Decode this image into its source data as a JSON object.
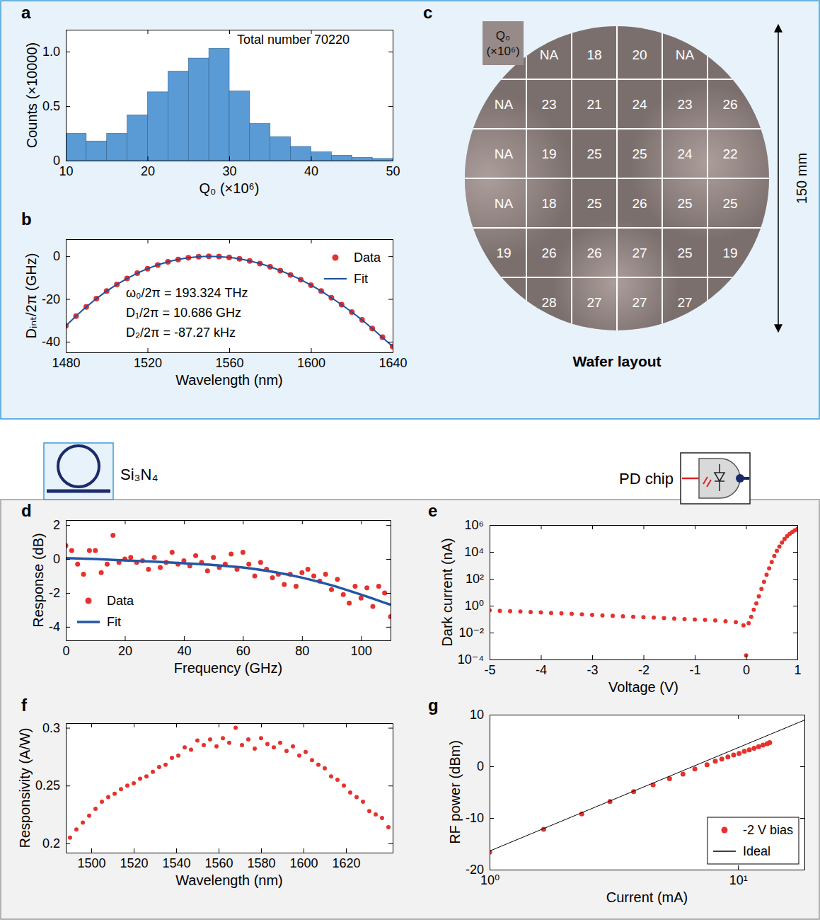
{
  "chart_data": [
    {
      "panel": "a",
      "type": "histogram",
      "x_label": "Q₀ (×10⁶)",
      "y_label": "Counts (×10000)",
      "annotations": [
        "Total number 70220"
      ],
      "bins": [
        10,
        12.5,
        15,
        17.5,
        20,
        22.5,
        25,
        27.5,
        30,
        32.5,
        35,
        37.5,
        40,
        42.5,
        45,
        47.5,
        50
      ],
      "values": [
        0.25,
        0.18,
        0.25,
        0.42,
        0.63,
        0.82,
        0.94,
        1.03,
        0.64,
        0.34,
        0.22,
        0.13,
        0.08,
        0.05,
        0.03,
        0.02
      ],
      "color": "#5b9bd5",
      "xlim": [
        10,
        50
      ],
      "ylim": [
        0,
        1.2
      ],
      "xticks": [
        10,
        20,
        30,
        40,
        50
      ],
      "yticks": [
        0,
        0.5,
        {
          "value": 1,
          "label": "1.0"
        }
      ]
    },
    {
      "panel": "b",
      "type": "line",
      "x_label": "Wavelength (nm)",
      "y_label": "Dᵢₙₜ/2π (GHz)",
      "annotations": [
        "ω₀/2π = 193.324 THz",
        "D₁/2π = 10.686 GHz",
        "D₂/2π = -87.27 kHz"
      ],
      "xlim": [
        1480,
        1640
      ],
      "ylim": [
        -45,
        8
      ],
      "xticks": [
        1480,
        1520,
        1560,
        1600,
        1640
      ],
      "yticks": [
        -40,
        -20,
        0
      ],
      "legend": "upper right",
      "series": [
        {
          "name": "Data",
          "type": "scatter",
          "marker": "circle",
          "color": "#e5322d",
          "x": [
            1480,
            1485,
            1490,
            1495,
            1500,
            1505,
            1510,
            1515,
            1520,
            1525,
            1530,
            1535,
            1540,
            1545,
            1550,
            1555,
            1560,
            1565,
            1570,
            1575,
            1580,
            1585,
            1590,
            1595,
            1600,
            1605,
            1610,
            1615,
            1620,
            1625,
            1630,
            1635,
            1640
          ],
          "values": [
            -32.6,
            -28.0,
            -23.7,
            -19.8,
            -16.3,
            -13.2,
            -10.4,
            -7.9,
            -5.8,
            -4.1,
            -2.6,
            -1.5,
            -0.7,
            -0.2,
            0,
            -0.1,
            -0.5,
            -1.2,
            -2.2,
            -3.4,
            -4.9,
            -6.7,
            -8.7,
            -11.0,
            -13.5,
            -16.3,
            -19.4,
            -22.6,
            -26.1,
            -29.8,
            -33.8,
            -37.9,
            -42.3
          ]
        },
        {
          "name": "Fit",
          "type": "line",
          "line_style": "solid",
          "color": "#1f4e9c",
          "x": [
            1480,
            1490,
            1500,
            1510,
            1520,
            1530,
            1540,
            1550,
            1560,
            1570,
            1580,
            1590,
            1600,
            1610,
            1620,
            1630,
            1640
          ],
          "values": [
            -32.6,
            -23.7,
            -16.3,
            -10.4,
            -5.8,
            -2.6,
            -0.7,
            0,
            -0.5,
            -2.2,
            -4.9,
            -8.7,
            -13.5,
            -19.4,
            -26.1,
            -33.8,
            -42.3
          ]
        }
      ]
    },
    {
      "panel": "c",
      "type": "wafer_map",
      "title": "Wafer layout",
      "colorbar_label": "Q₀ (×10⁶)",
      "dimension_label": "150 mm",
      "cells": [
        [
          null,
          "NA",
          18,
          20,
          "NA",
          null
        ],
        [
          "NA",
          23,
          21,
          24,
          23,
          26
        ],
        [
          "NA",
          19,
          25,
          25,
          24,
          22
        ],
        [
          "NA",
          18,
          25,
          26,
          25,
          25
        ],
        [
          19,
          26,
          26,
          27,
          25,
          19
        ],
        [
          null,
          28,
          27,
          27,
          27,
          null
        ]
      ]
    },
    {
      "panel": "d",
      "type": "line",
      "x_label": "Frequency (GHz)",
      "y_label": "Response (dB)",
      "xlim": [
        0,
        110
      ],
      "ylim": [
        -4.8,
        2.3
      ],
      "xticks": [
        0,
        20,
        40,
        60,
        80,
        100
      ],
      "yticks": [
        -4,
        -2,
        0,
        2
      ],
      "legend": "lower left",
      "series": [
        {
          "name": "Data",
          "type": "scatter",
          "marker": "circle",
          "color": "#e5322d",
          "x": [
            0,
            2,
            4,
            6,
            8,
            10,
            12,
            14,
            16,
            18,
            20,
            22,
            24,
            26,
            28,
            30,
            32,
            34,
            36,
            38,
            40,
            42,
            44,
            46,
            48,
            50,
            52,
            54,
            56,
            58,
            60,
            62,
            64,
            66,
            68,
            70,
            72,
            74,
            76,
            78,
            80,
            82,
            84,
            86,
            88,
            90,
            92,
            94,
            96,
            98,
            100,
            102,
            104,
            106,
            108,
            110
          ],
          "values": [
            0.8,
            0.5,
            -0.3,
            -0.9,
            0.5,
            0.5,
            -0.8,
            -0.3,
            1.4,
            -0.2,
            0,
            0.1,
            -0.2,
            -0.1,
            -0.6,
            0.1,
            -0.5,
            -0.2,
            0.4,
            -0.3,
            -0.1,
            -0.4,
            0.2,
            -0.2,
            -0.7,
            0.1,
            -0.5,
            -0.3,
            0.3,
            -0.6,
            0.4,
            -0.3,
            -1,
            -0.2,
            -0.6,
            -1.1,
            -0.9,
            -1.5,
            -0.9,
            -1.6,
            -0.8,
            -0.6,
            -1,
            -1.3,
            -0.9,
            -1.8,
            -1.2,
            -2.1,
            -2.6,
            -1.6,
            -2.3,
            -1.7,
            -2.8,
            -1.6,
            -2,
            -3.4
          ]
        },
        {
          "name": "Fit",
          "type": "line",
          "line_style": "solid",
          "color": "#2456a4",
          "x": [
            0,
            10,
            20,
            30,
            40,
            50,
            60,
            70,
            80,
            90,
            100,
            110
          ],
          "values": [
            0.05,
            0,
            -0.08,
            -0.15,
            -0.25,
            -0.35,
            -0.5,
            -0.75,
            -1.1,
            -1.55,
            -2.1,
            -2.7
          ]
        }
      ]
    },
    {
      "panel": "e",
      "type": "scatter",
      "x_label": "Voltage (V)",
      "y_label": "Dark current (nA)",
      "log": "y",
      "xlim": [
        -5,
        1
      ],
      "ylim": [
        0.0001,
        1000000
      ],
      "xticks": [
        -5,
        -4,
        -3,
        -2,
        -1,
        0,
        1
      ],
      "yticks": [
        {
          "value": 0.0001,
          "label": "10⁻⁴"
        },
        {
          "value": 0.01,
          "label": "10⁻²"
        },
        {
          "value": 1,
          "label": "10⁰"
        },
        {
          "value": 100,
          "label": "10²"
        },
        {
          "value": 10000,
          "label": "10⁴"
        },
        {
          "value": 1000000,
          "label": "10⁶"
        }
      ],
      "series": [
        {
          "type": "scatter",
          "marker": "circle",
          "color": "#e5322d",
          "x": [
            -5,
            -4.8,
            -4.6,
            -4.4,
            -4.2,
            -4,
            -3.8,
            -3.6,
            -3.4,
            -3.2,
            -3,
            -2.8,
            -2.6,
            -2.4,
            -2.2,
            -2,
            -1.8,
            -1.6,
            -1.4,
            -1.2,
            -1,
            -0.8,
            -0.6,
            -0.4,
            -0.2,
            -0.05,
            0,
            0.05,
            0.1,
            0.15,
            0.2,
            0.25,
            0.3,
            0.35,
            0.4,
            0.45,
            0.5,
            0.55,
            0.6,
            0.65,
            0.7,
            0.75,
            0.8,
            0.85,
            0.9,
            0.95,
            1
          ],
          "values": [
            0.45,
            0.42,
            0.39,
            0.37,
            0.34,
            0.32,
            0.29,
            0.27,
            0.25,
            0.23,
            0.21,
            0.19,
            0.18,
            0.16,
            0.15,
            0.14,
            0.13,
            0.12,
            0.11,
            0.1,
            0.095,
            0.088,
            0.08,
            0.07,
            0.06,
            0.035,
            0.0002,
            0.05,
            0.15,
            0.5,
            1.5,
            5,
            18,
            60,
            200,
            600,
            1800,
            5000,
            12000,
            25000,
            50000,
            90000,
            150000,
            220000,
            300000,
            400000,
            500000
          ]
        }
      ]
    },
    {
      "panel": "f",
      "type": "scatter",
      "x_label": "Wavelength (nm)",
      "y_label": "Responsivity (A/W)",
      "xlim": [
        1488,
        1642
      ],
      "ylim": [
        0.192,
        0.304
      ],
      "xticks": [
        1500,
        1520,
        1540,
        1560,
        1580,
        1600,
        1620
      ],
      "yticks": [
        0.2,
        0.25,
        0.3
      ],
      "series": [
        {
          "type": "scatter",
          "marker": "circle",
          "color": "#e5322d",
          "x": [
            1490,
            1493,
            1496,
            1499,
            1502,
            1505,
            1508,
            1511,
            1514,
            1517,
            1520,
            1523,
            1526,
            1529,
            1532,
            1535,
            1538,
            1541,
            1544,
            1547,
            1550,
            1553,
            1556,
            1559,
            1562,
            1565,
            1568,
            1571,
            1574,
            1577,
            1580,
            1583,
            1586,
            1589,
            1592,
            1595,
            1598,
            1601,
            1604,
            1607,
            1610,
            1613,
            1616,
            1619,
            1622,
            1625,
            1628,
            1631,
            1634,
            1637,
            1640
          ],
          "values": [
            0.205,
            0.212,
            0.218,
            0.224,
            0.23,
            0.236,
            0.24,
            0.243,
            0.247,
            0.25,
            0.252,
            0.256,
            0.258,
            0.262,
            0.266,
            0.268,
            0.274,
            0.276,
            0.283,
            0.281,
            0.289,
            0.285,
            0.29,
            0.284,
            0.291,
            0.287,
            0.3,
            0.285,
            0.29,
            0.282,
            0.291,
            0.286,
            0.283,
            0.287,
            0.28,
            0.284,
            0.276,
            0.279,
            0.272,
            0.268,
            0.265,
            0.258,
            0.255,
            0.25,
            0.244,
            0.24,
            0.236,
            0.228,
            0.225,
            0.222,
            0.214
          ]
        }
      ]
    },
    {
      "panel": "g",
      "type": "line",
      "x_label": "Current (mA)",
      "y_label": "RF power (dBm)",
      "log": "x",
      "xlim": [
        1,
        18.5
      ],
      "ylim": [
        -20,
        10
      ],
      "xticks": [
        {
          "value": 1,
          "label": "10⁰"
        },
        {
          "value": 10,
          "label": "10¹"
        }
      ],
      "yticks": [
        -20,
        -10,
        0,
        10
      ],
      "legend": "lower right",
      "series": [
        {
          "name": "-2 V bias",
          "type": "scatter",
          "marker": "circle",
          "color": "#e5322d",
          "x": [
            1,
            1.65,
            2.35,
            3.05,
            3.8,
            4.55,
            5.3,
            6.0,
            6.7,
            7.5,
            8.1,
            8.6,
            9.1,
            9.6,
            10.1,
            10.6,
            11.1,
            11.6,
            12.1,
            12.6,
            13.1,
            13.4
          ],
          "values": [
            -16.6,
            -12.2,
            -9.2,
            -6.8,
            -4.9,
            -3.6,
            -2.4,
            -1.5,
            -0.5,
            0.3,
            1.0,
            1.4,
            1.8,
            2.2,
            2.5,
            2.9,
            3.2,
            3.5,
            3.8,
            4.1,
            4.4,
            4.6
          ]
        },
        {
          "name": "Ideal",
          "type": "line",
          "line_style": "solid",
          "color": "#000000",
          "x": [
            1,
            18.5
          ],
          "values": [
            -16.4,
            8.95
          ]
        }
      ]
    }
  ],
  "icons": {
    "ring_label": "Si₃N₄",
    "chip_label": "PD chip"
  }
}
